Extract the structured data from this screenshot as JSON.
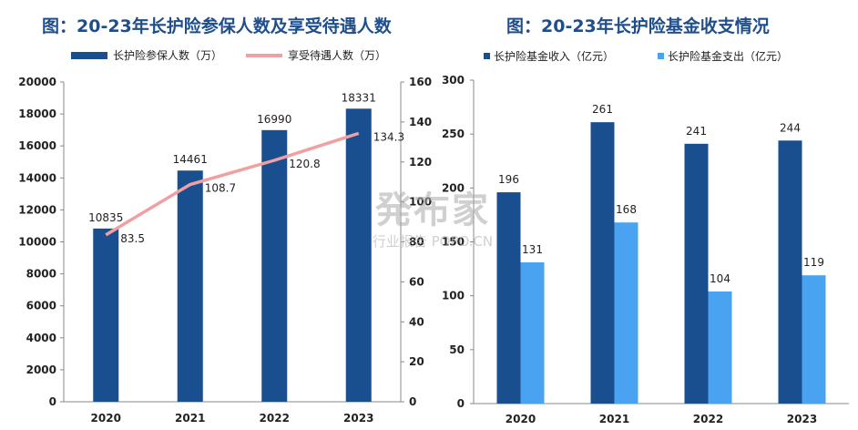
{
  "watermark": {
    "main": "発布家",
    "sub": "行业报告  POPO.CN"
  },
  "chart_data": [
    {
      "type": "bar",
      "title": "图：20-23年长护险参保人数及享受待遇人数",
      "categories": [
        "2020",
        "2021",
        "2022",
        "2023"
      ],
      "series": [
        {
          "name": "长护险参保人数（万）",
          "kind": "bar",
          "axis": "left",
          "values": [
            10835,
            14461,
            16990,
            18331
          ],
          "color": "#1a4f8f"
        },
        {
          "name": "享受待遇人数（万）",
          "kind": "line",
          "axis": "right",
          "values": [
            83.5,
            108.7,
            120.8,
            134.3
          ],
          "color": "#f0a0a3"
        }
      ],
      "left_axis": {
        "ylim": [
          0,
          20000
        ],
        "ticks": [
          0,
          2000,
          4000,
          6000,
          8000,
          10000,
          12000,
          14000,
          16000,
          18000,
          20000
        ]
      },
      "right_axis": {
        "ylim": [
          0,
          160
        ],
        "ticks": [
          0,
          20,
          40,
          60,
          80,
          100,
          120,
          140,
          160
        ]
      },
      "grid": false,
      "legend": "top"
    },
    {
      "type": "bar",
      "title": "图：20-23年长护险基金收支情况",
      "categories": [
        "2020",
        "2021",
        "2022",
        "2023"
      ],
      "series": [
        {
          "name": "长护险基金收入（亿元）",
          "values": [
            196,
            261,
            241,
            244
          ],
          "color": "#1a4f8f"
        },
        {
          "name": "长护险基金支出（亿元）",
          "values": [
            131,
            168,
            104,
            119
          ],
          "color": "#4aa3f0"
        }
      ],
      "left_axis": {
        "ylim": [
          0,
          300
        ],
        "ticks": [
          0,
          50,
          100,
          150,
          200,
          250,
          300
        ]
      },
      "grid": false,
      "legend": "top"
    }
  ]
}
